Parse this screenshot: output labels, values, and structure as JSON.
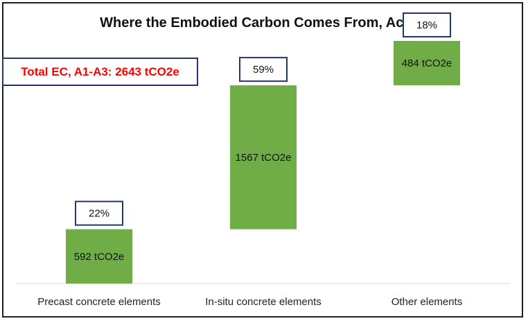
{
  "chart_data": {
    "type": "bar",
    "subtype": "waterfall",
    "title": "Where the Embodied Carbon Comes From, Actual",
    "annotation": "Total EC, A1-A3: 2643 tCO2e",
    "total": 2643,
    "unit": "tCO2e",
    "categories": [
      "Precast concrete elements",
      "In-situ concrete elements",
      "Other elements"
    ],
    "values": [
      592,
      1567,
      484
    ],
    "value_labels": [
      "592 tCO2e",
      "1567 tCO2e",
      "484 tCO2e"
    ],
    "percent_labels": [
      "22%",
      "59%",
      "18%"
    ],
    "ylim": [
      0,
      2643
    ],
    "grid": false,
    "bar_color": "#70ad47",
    "box_border_color": "#1f3864",
    "annotation_color": "#ff0000"
  }
}
